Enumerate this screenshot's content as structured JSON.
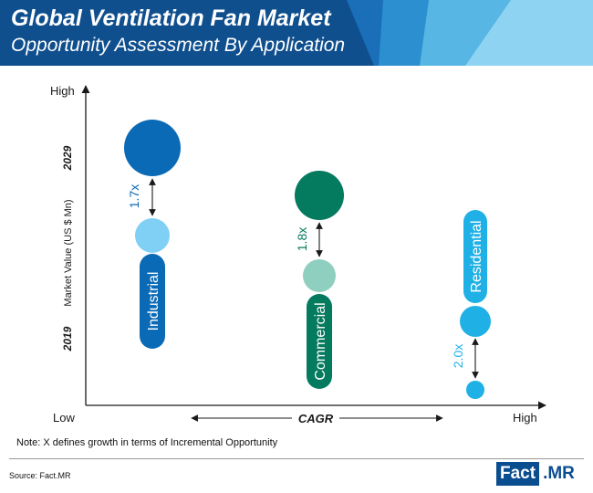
{
  "header": {
    "title": "Global Ventilation Fan Market",
    "subtitle": "Opportunity Assessment By Application",
    "colors": [
      "#0f4f8e",
      "#1a6fb8",
      "#2b8fd0",
      "#58b6e4",
      "#8ed3f2"
    ]
  },
  "chart_data": {
    "type": "bubble",
    "ylabel": "Market Value (US $ Mn)",
    "xlabel": "CAGR",
    "y_axis_high": "High",
    "x_axis_low": "Low",
    "x_axis_high": "High",
    "year_start": "2019",
    "year_end": "2029",
    "series": [
      {
        "name": "Industrial",
        "growth_label": "1.7x",
        "multiplier": 1.7,
        "cagr_rank": 1,
        "color_2029": "#0b6ab5",
        "color_2019": "#7fd0f4",
        "label_color": "#0b6ab5"
      },
      {
        "name": "Commercial",
        "growth_label": "1.8x",
        "multiplier": 1.8,
        "cagr_rank": 2,
        "color_2029": "#047a5e",
        "color_2019": "#8fcfbf",
        "label_color": "#047a5e"
      },
      {
        "name": "Residential",
        "growth_label": "2.0x",
        "multiplier": 2.0,
        "cagr_rank": 3,
        "color_2029": "#1fb1e6",
        "color_2019": "#1fb1e6",
        "label_color": "#1fb1e6"
      }
    ]
  },
  "footer": {
    "note": "Note: X defines growth in terms of Incremental Opportunity",
    "source": "Source: Fact.MR",
    "logo_a": "Fact",
    "logo_b": ".MR"
  }
}
